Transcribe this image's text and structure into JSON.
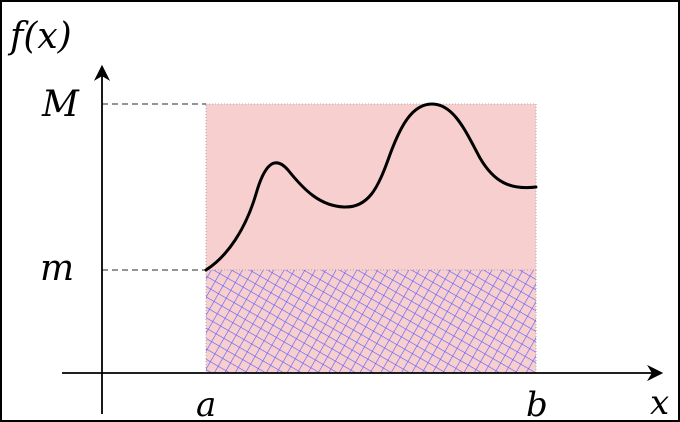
{
  "labels": {
    "y_axis": "f(x)",
    "x_axis": "x",
    "upper_bound": "M",
    "lower_bound": "m",
    "interval_start": "a",
    "interval_end": "b"
  },
  "colors": {
    "upper_region_fill": "#f7cfcf",
    "lower_region_hatch": "#5a5aff",
    "curve": "#000000",
    "axes": "#000000",
    "dashed_guides": "#555555"
  }
}
